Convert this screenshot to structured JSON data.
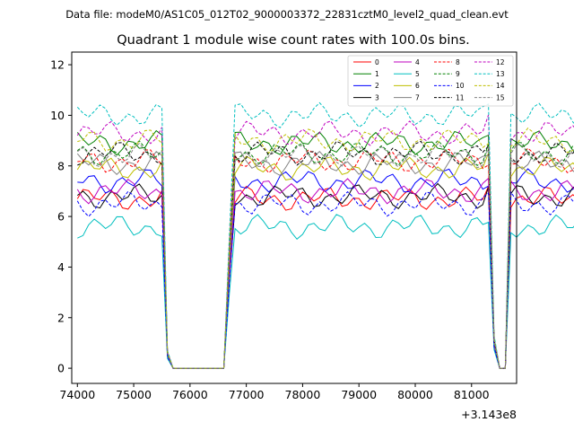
{
  "header": {
    "data_file": "Data file: modeM0/AS1C05_012T02_9000003372_22831cztM0_level2_quad_clean.evt"
  },
  "chart_data": {
    "type": "line",
    "title": "Quadrant 1 module wise count rates with 100.0s bins.",
    "xlabel": "",
    "ylabel": "",
    "offset_label": "+3.143e8",
    "xlim": [
      73900,
      81800
    ],
    "ylim": [
      -0.6,
      12.5
    ],
    "x_ticks": [
      74000,
      75000,
      76000,
      77000,
      78000,
      79000,
      80000,
      81000
    ],
    "x_tick_labels": [
      "74000",
      "75000",
      "76000",
      "77000",
      "78000",
      "79000",
      "80000",
      "81000"
    ],
    "y_ticks": [
      0,
      2,
      4,
      6,
      8,
      10,
      12
    ],
    "y_tick_labels": [
      "0",
      "2",
      "4",
      "6",
      "8",
      "10",
      "12"
    ],
    "x_start": 74000,
    "x_step": 100,
    "legend_placement": "upper-right",
    "series": [
      {
        "name": "0",
        "color": "#ff0000",
        "dash": "solid",
        "level": 6.7
      },
      {
        "name": "1",
        "color": "#008000",
        "dash": "solid",
        "level": 8.9
      },
      {
        "name": "2",
        "color": "#0000ff",
        "dash": "solid",
        "level": 7.4
      },
      {
        "name": "3",
        "color": "#000000",
        "dash": "solid",
        "level": 6.8
      },
      {
        "name": "4",
        "color": "#bf00bf",
        "dash": "solid",
        "level": 7.0
      },
      {
        "name": "5",
        "color": "#00bfbf",
        "dash": "solid",
        "level": 5.6
      },
      {
        "name": "6",
        "color": "#bfbf00",
        "dash": "solid",
        "level": 7.9
      },
      {
        "name": "7",
        "color": "#808080",
        "dash": "solid",
        "level": 8.1
      },
      {
        "name": "8",
        "color": "#ff0000",
        "dash": "dashed",
        "level": 8.2
      },
      {
        "name": "9",
        "color": "#008000",
        "dash": "dashed",
        "level": 8.5
      },
      {
        "name": "10",
        "color": "#0000ff",
        "dash": "dashed",
        "level": 6.5
      },
      {
        "name": "11",
        "color": "#000000",
        "dash": "dashed",
        "level": 8.5
      },
      {
        "name": "12",
        "color": "#bf00bf",
        "dash": "dashed",
        "level": 9.3
      },
      {
        "name": "13",
        "color": "#00bfbf",
        "dash": "dashed",
        "level": 10.0
      },
      {
        "name": "14",
        "color": "#bfbf00",
        "dash": "dashed",
        "level": 9.0
      },
      {
        "name": "15",
        "color": "#808080",
        "dash": "dashed",
        "level": 8.4
      }
    ]
  }
}
